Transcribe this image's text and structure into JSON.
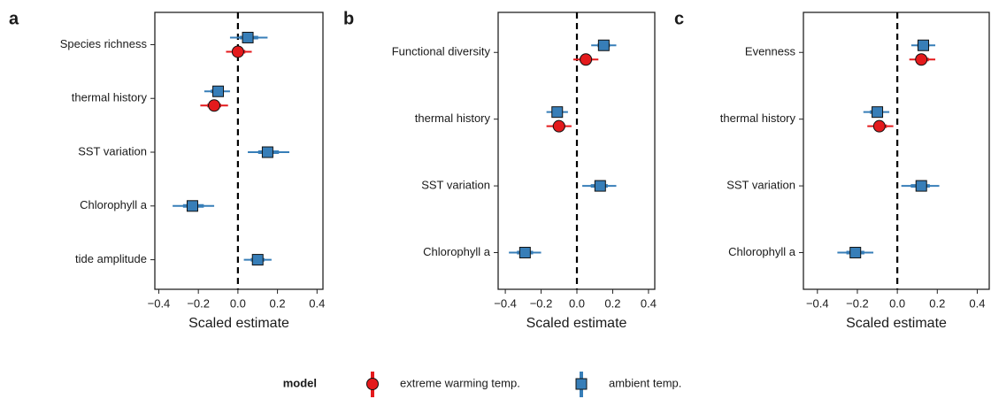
{
  "legend_title": "model",
  "chart_data": [
    {
      "type": "coef",
      "panel_label": "a",
      "xlabel": "Scaled estimate",
      "categories": [
        "Species richness",
        "thermal history",
        "SST variation",
        "Chlorophyll a",
        "tide amplitude"
      ],
      "xlim": [
        -0.42,
        0.43
      ],
      "xticks": [
        {
          "value": -0.4,
          "label": "−0.4"
        },
        {
          "value": -0.2,
          "label": "−0.2"
        },
        {
          "value": 0,
          "label": "0.0"
        },
        0.2,
        0.4
      ],
      "vline": 0,
      "series": [
        {
          "name": "extreme warming temp.",
          "color": "#e41a1c",
          "marker": "circle",
          "values": [
            0.0,
            -0.12,
            null,
            null,
            null
          ],
          "lower": [
            -0.06,
            -0.19,
            null,
            null,
            null
          ],
          "upper": [
            0.07,
            -0.05,
            null,
            null,
            null
          ]
        },
        {
          "name": "ambient temp.",
          "color": "#377eb8",
          "marker": "square",
          "values": [
            0.05,
            -0.1,
            0.15,
            -0.23,
            0.1
          ],
          "lower": [
            -0.04,
            -0.17,
            0.05,
            -0.33,
            0.03
          ],
          "upper": [
            0.15,
            -0.04,
            0.26,
            -0.12,
            0.17
          ]
        }
      ]
    },
    {
      "type": "coef",
      "panel_label": "b",
      "xlabel": "Scaled estimate",
      "categories": [
        "Functional diversity",
        "thermal history",
        "SST variation",
        "Chlorophyll a"
      ],
      "xlim": [
        -0.44,
        0.435
      ],
      "xticks": [
        {
          "value": -0.4,
          "label": "−0.4"
        },
        {
          "value": -0.2,
          "label": "−0.2"
        },
        {
          "value": 0,
          "label": "0.0"
        },
        0.2,
        0.4
      ],
      "vline": 0,
      "series": [
        {
          "name": "extreme warming temp.",
          "color": "#e41a1c",
          "marker": "circle",
          "values": [
            0.05,
            -0.1,
            null,
            null
          ],
          "lower": [
            -0.02,
            -0.17,
            null,
            null
          ],
          "upper": [
            0.12,
            -0.03,
            null,
            null
          ]
        },
        {
          "name": "ambient temp.",
          "color": "#377eb8",
          "marker": "square",
          "values": [
            0.15,
            -0.11,
            0.13,
            -0.29
          ],
          "lower": [
            0.08,
            -0.17,
            0.03,
            -0.38
          ],
          "upper": [
            0.22,
            -0.05,
            0.22,
            -0.2
          ]
        }
      ]
    },
    {
      "type": "coef",
      "panel_label": "c",
      "xlabel": "Scaled estimate",
      "categories": [
        "Evenness",
        "thermal history",
        "SST variation",
        "Chlorophyll a"
      ],
      "xlim": [
        -0.47,
        0.46
      ],
      "xticks": [
        {
          "value": -0.4,
          "label": "−0.4"
        },
        {
          "value": -0.2,
          "label": "−0.2"
        },
        {
          "value": 0,
          "label": "0.0"
        },
        0.2,
        0.4
      ],
      "vline": 0,
      "series": [
        {
          "name": "extreme warming temp.",
          "color": "#e41a1c",
          "marker": "circle",
          "values": [
            0.12,
            -0.09,
            null,
            null
          ],
          "lower": [
            0.06,
            -0.15,
            null,
            null
          ],
          "upper": [
            0.19,
            -0.02,
            null,
            null
          ]
        },
        {
          "name": "ambient temp.",
          "color": "#377eb8",
          "marker": "square",
          "values": [
            0.13,
            -0.1,
            0.12,
            -0.21
          ],
          "lower": [
            0.07,
            -0.17,
            0.02,
            -0.3
          ],
          "upper": [
            0.19,
            -0.04,
            0.21,
            -0.12
          ]
        }
      ]
    }
  ]
}
